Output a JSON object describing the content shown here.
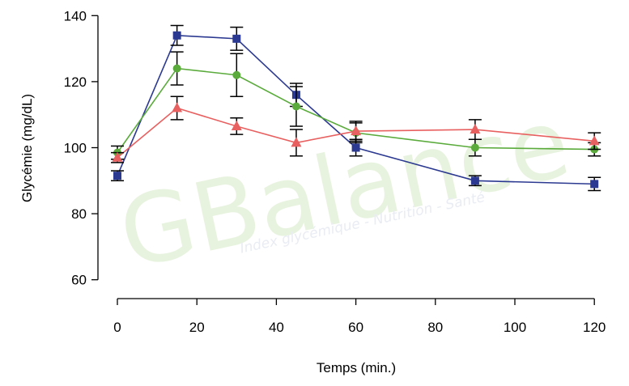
{
  "watermark": {
    "brand": "GBalance",
    "tagline": "Index glycémique - Nutrition - Santé"
  },
  "chart_data": {
    "type": "line",
    "title": "",
    "xlabel": "Temps (min.)",
    "ylabel": "Glycémie (mg/dL)",
    "xlim": [
      -5,
      125
    ],
    "ylim": [
      55,
      145
    ],
    "xticks": [
      0,
      20,
      40,
      60,
      80,
      100,
      120
    ],
    "yticks": [
      60,
      80,
      100,
      120,
      140
    ],
    "x": [
      0,
      15,
      30,
      45,
      60,
      90,
      120
    ],
    "grid": false,
    "legend": "none",
    "series": [
      {
        "color": "#2b3990",
        "marker": "square",
        "values": [
          91.5,
          134,
          133,
          116,
          100,
          90,
          89
        ],
        "errors": [
          1.5,
          3,
          3.5,
          3.5,
          2.5,
          1.5,
          2
        ]
      },
      {
        "color": "#5aab3b",
        "marker": "circle",
        "values": [
          98.5,
          124,
          122,
          112.5,
          104.5,
          100,
          99.5
        ],
        "errors": [
          2,
          5,
          6.5,
          6,
          3,
          2.5,
          2
        ]
      },
      {
        "color": "#e86060",
        "marker": "triangle",
        "values": [
          97,
          112,
          106.5,
          101.5,
          105,
          105.5,
          102
        ],
        "errors": [
          1.5,
          3.5,
          2.5,
          4,
          3,
          3,
          2.5
        ]
      }
    ]
  }
}
